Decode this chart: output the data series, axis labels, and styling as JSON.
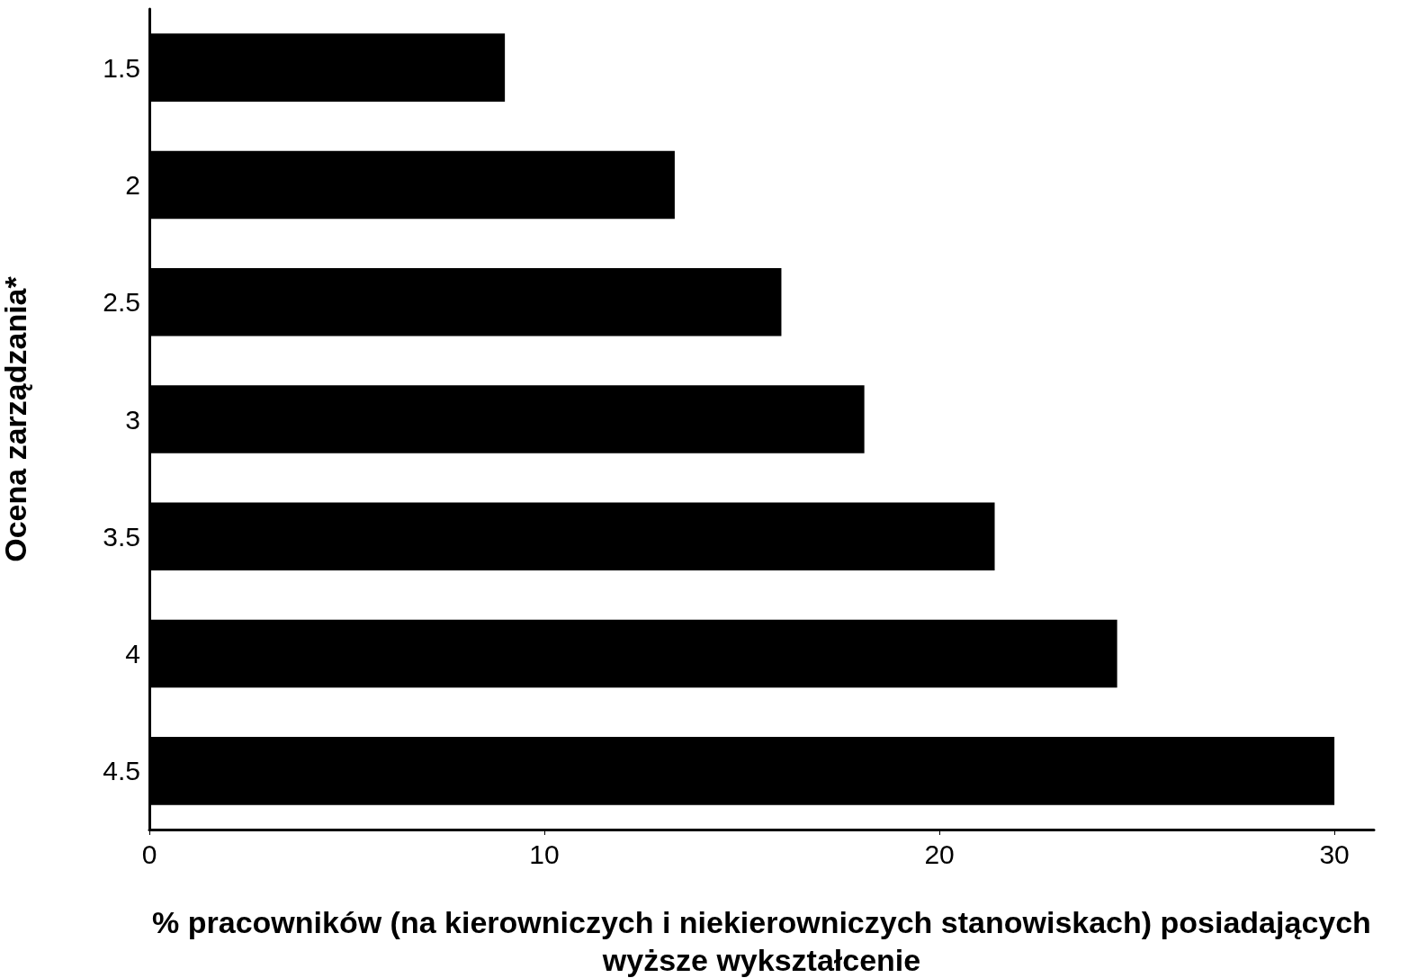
{
  "chart_data": {
    "type": "bar",
    "orientation": "horizontal",
    "categories": [
      "1.5",
      "2",
      "2.5",
      "3",
      "3.5",
      "4",
      "4.5"
    ],
    "values": [
      9.0,
      13.3,
      16.0,
      18.1,
      21.4,
      24.5,
      30.0
    ],
    "color": "#000000",
    "xlim": [
      0,
      31
    ],
    "xticks": [
      0,
      10,
      20,
      30
    ],
    "xlabel": "% pracowników (na kierowniczych i niekierowniczych stanowiskach) posiadających wyższe wykształcenie",
    "ylabel": "Ocena zarządzania*",
    "grid": false
  }
}
